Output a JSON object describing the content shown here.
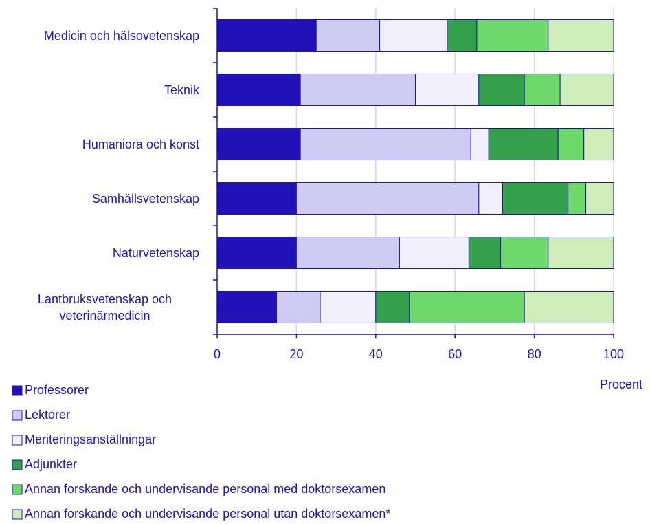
{
  "chart_data": {
    "type": "stacked-bar-horizontal",
    "categories": [
      "Medicin och hälsovetenskap",
      "Teknik",
      "Humaniora och konst",
      "Samhällsvetenskap",
      "Naturvetenskap",
      "Lantbruksvetenskap och veterinärmedicin"
    ],
    "series": [
      {
        "name": "Professorer",
        "color": "#2012b4",
        "values": [
          25,
          21,
          21,
          20,
          20,
          15
        ]
      },
      {
        "name": "Lektorer",
        "color": "#d0cbf2",
        "values": [
          16,
          29,
          43,
          46,
          26,
          11
        ]
      },
      {
        "name": "Meriteringsanställningar",
        "color": "#f1f0fc",
        "values": [
          17,
          16,
          4.5,
          6,
          17.5,
          14
        ]
      },
      {
        "name": "Adjunkter",
        "color": "#34a04a",
        "values": [
          7.5,
          11.5,
          17.5,
          16.5,
          8,
          8.5
        ]
      },
      {
        "name": "Annan forskande och undervisande personal med doktorsexamen",
        "color": "#6ed96a",
        "values": [
          18,
          9,
          6.5,
          4.5,
          12,
          29
        ]
      },
      {
        "name": "Annan forskande och undervisande personal utan doktorsexamen*",
        "color": "#cdeeb8",
        "values": [
          16.5,
          13.5,
          7.5,
          7,
          16.5,
          22.5
        ]
      }
    ],
    "xlabel": "Procent",
    "xlim": [
      0,
      100
    ],
    "xticks": [
      0,
      20,
      40,
      60,
      80,
      100
    ],
    "grid": true
  }
}
